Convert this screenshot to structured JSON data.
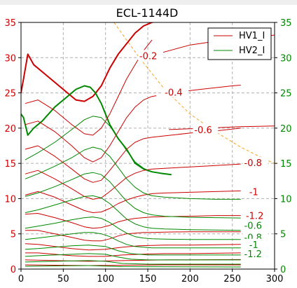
{
  "chart_data": {
    "type": "line",
    "title": "ECL-1144D",
    "xlabel": "",
    "ylabel": "",
    "xlim": [
      0,
      300
    ],
    "ylim": [
      0,
      35
    ],
    "ylim_right": [
      0,
      35
    ],
    "xticks": [
      0,
      50,
      100,
      150,
      200,
      250,
      300
    ],
    "yticks": [
      0,
      5,
      10,
      15,
      20,
      25,
      30,
      35
    ],
    "grid": true,
    "legend_position": "top-right",
    "colors": {
      "hv1": "#cc0000",
      "hv2": "#008800",
      "right_axis": "#008800",
      "dashed": "#f5a623"
    },
    "legend": [
      {
        "name": "HV1_I",
        "color": "#cc0000"
      },
      {
        "name": "HV2_I",
        "color": "#008800"
      }
    ],
    "series": [
      {
        "name": "HV1_I",
        "color": "#cc0000",
        "width": 2,
        "x": [
          0,
          3,
          8,
          15,
          25,
          40,
          55,
          65,
          75,
          85,
          95,
          105,
          115,
          125,
          135,
          145,
          155,
          160
        ],
        "y": [
          25,
          27,
          30.5,
          29,
          28,
          26.5,
          25,
          24,
          23.8,
          24.5,
          26,
          28.5,
          30.5,
          32,
          33.5,
          34.5,
          35,
          35.2
        ]
      },
      {
        "name": "HV2_I",
        "color": "#008800",
        "width": 2,
        "x": [
          0,
          3,
          8,
          15,
          25,
          40,
          55,
          65,
          75,
          82,
          88,
          95,
          105,
          115,
          125,
          135,
          145,
          155,
          165,
          178
        ],
        "y": [
          22,
          21.5,
          19,
          20,
          21,
          23,
          24.5,
          25.5,
          26,
          25.8,
          25,
          23.5,
          20.5,
          18.5,
          17,
          15,
          14.2,
          13.8,
          13.6,
          13.4
        ]
      },
      {
        "name": "",
        "color": "#cc0000",
        "width": 1,
        "x": [
          5,
          20,
          40,
          60,
          75,
          85,
          95,
          105,
          115,
          125,
          135,
          145,
          155
        ],
        "y": [
          23.5,
          24,
          22.5,
          20.5,
          19.2,
          19,
          20,
          22,
          24.5,
          27,
          29,
          31,
          32.5
        ]
      },
      {
        "name": "",
        "color": "#cc0000",
        "width": 1,
        "x": [
          5,
          20,
          40,
          60,
          75,
          85,
          95,
          105,
          115,
          125,
          135,
          145,
          155,
          160
        ],
        "y": [
          20.5,
          21,
          19.5,
          17.5,
          15.8,
          15.2,
          15.8,
          17.5,
          19.5,
          21.5,
          23,
          24,
          24.5,
          24.6
        ]
      },
      {
        "name": "",
        "color": "#cc0000",
        "width": 1,
        "x": [
          5,
          20,
          40,
          60,
          75,
          85,
          95,
          105,
          115,
          125,
          135,
          145,
          155,
          170,
          200,
          230,
          260
        ],
        "y": [
          17,
          17.5,
          16,
          14.2,
          12.8,
          12.3,
          12.6,
          14,
          15.5,
          17,
          18,
          18.5,
          18.7,
          18.9,
          19.3,
          19.6,
          20
        ]
      },
      {
        "name": "",
        "color": "#cc0000",
        "width": 1,
        "x": [
          5,
          20,
          40,
          60,
          75,
          85,
          95,
          105,
          115,
          125,
          135,
          145,
          155,
          170,
          200,
          230,
          260
        ],
        "y": [
          13.5,
          14,
          12.8,
          11.4,
          10.3,
          9.9,
          10.1,
          11,
          12,
          13,
          13.6,
          14,
          14.2,
          14.3,
          14.5,
          14.7,
          14.9
        ]
      },
      {
        "name": "",
        "color": "#cc0000",
        "width": 1,
        "x": [
          5,
          20,
          40,
          60,
          75,
          85,
          95,
          105,
          115,
          125,
          135,
          145,
          155,
          170,
          200,
          230,
          260
        ],
        "y": [
          10.5,
          11,
          10.2,
          9.1,
          8.3,
          8,
          8.1,
          8.6,
          9.3,
          9.8,
          10.2,
          10.5,
          10.7,
          10.8,
          10.9,
          11,
          11.1
        ]
      },
      {
        "name": "",
        "color": "#cc0000",
        "width": 1,
        "x": [
          5,
          20,
          40,
          60,
          75,
          85,
          95,
          105,
          115,
          125,
          135,
          145,
          155,
          170,
          200,
          230,
          260
        ],
        "y": [
          7.8,
          7.9,
          7.3,
          6.6,
          6,
          5.8,
          5.9,
          6.2,
          6.7,
          7,
          7.2,
          7.3,
          7.4,
          7.45,
          7.5,
          7.6,
          7.6
        ]
      },
      {
        "name": "",
        "color": "#cc0000",
        "width": 1,
        "x": [
          5,
          20,
          40,
          60,
          75,
          85,
          95,
          105,
          115,
          125,
          135,
          145,
          155,
          170,
          200,
          230,
          260
        ],
        "y": [
          5.5,
          5.5,
          5,
          4.5,
          4.1,
          4,
          4,
          4.3,
          4.7,
          5,
          5.1,
          5.2,
          5.2,
          5.25,
          5.3,
          5.3,
          5.3
        ]
      },
      {
        "name": "",
        "color": "#cc0000",
        "width": 1,
        "x": [
          5,
          20,
          40,
          60,
          80,
          100,
          120,
          140,
          170,
          200,
          230,
          260
        ],
        "y": [
          3.6,
          3.5,
          3.2,
          2.9,
          2.7,
          2.8,
          3.1,
          3.3,
          3.4,
          3.4,
          3.45,
          3.5
        ]
      },
      {
        "name": "",
        "color": "#cc0000",
        "width": 1,
        "x": [
          5,
          20,
          40,
          60,
          80,
          100,
          120,
          140,
          170,
          200,
          230,
          260
        ],
        "y": [
          2.3,
          2.3,
          2.1,
          1.9,
          1.8,
          1.8,
          2,
          2.1,
          2.2,
          2.2,
          2.25,
          2.3
        ]
      },
      {
        "name": "",
        "color": "#cc0000",
        "width": 1,
        "x": [
          5,
          40,
          80,
          120,
          170,
          260
        ],
        "y": [
          1.3,
          1.2,
          1.1,
          1.2,
          1.3,
          1.35
        ]
      },
      {
        "name": "",
        "color": "#cc0000",
        "width": 1,
        "x": [
          5,
          40,
          80,
          120,
          170,
          260
        ],
        "y": [
          0.6,
          0.55,
          0.5,
          0.55,
          0.6,
          0.6
        ]
      },
      {
        "name": "",
        "color": "#cc0000",
        "width": 1,
        "x": [
          160,
          200,
          240,
          280,
          300
        ],
        "y": [
          30.5,
          31.8,
          32.5,
          33,
          33.2
        ]
      },
      {
        "name": "",
        "color": "#cc0000",
        "width": 1,
        "x": [
          190,
          220,
          250,
          260
        ],
        "y": [
          25.2,
          25.6,
          26,
          26.1
        ]
      },
      {
        "name": "",
        "color": "#cc0000",
        "width": 1,
        "x": [
          175,
          220,
          260,
          300
        ],
        "y": [
          19.8,
          20,
          20.2,
          20.3
        ]
      },
      {
        "name": "",
        "color": "#008800",
        "width": 1,
        "x": [
          5,
          20,
          40,
          60,
          75,
          85,
          95,
          105,
          115,
          125,
          135,
          145,
          155,
          170
        ],
        "y": [
          15.5,
          16.5,
          18,
          19.8,
          21.2,
          21.7,
          21.5,
          20.3,
          18.6,
          16.8,
          15.2,
          14.3,
          13.8,
          13.5
        ]
      },
      {
        "name": "",
        "color": "#008800",
        "width": 1,
        "x": [
          5,
          20,
          40,
          60,
          75,
          85,
          95,
          105,
          115,
          125,
          135,
          145,
          155,
          170,
          200,
          230,
          260
        ],
        "y": [
          12.8,
          13.5,
          14.6,
          15.8,
          16.9,
          17.3,
          17,
          16,
          14.4,
          12.8,
          11.6,
          10.8,
          10.4,
          10.2,
          10,
          9.9,
          9.9
        ]
      },
      {
        "name": "",
        "color": "#008800",
        "width": 1,
        "x": [
          5,
          20,
          40,
          60,
          75,
          85,
          95,
          105,
          115,
          125,
          135,
          145,
          155,
          170,
          200,
          230,
          260
        ],
        "y": [
          10.3,
          10.8,
          11.7,
          12.7,
          13.5,
          13.7,
          13.4,
          12.4,
          11,
          9.6,
          8.6,
          8,
          7.7,
          7.5,
          7.35,
          7.3,
          7.25
        ]
      },
      {
        "name": "",
        "color": "#008800",
        "width": 1,
        "x": [
          5,
          20,
          40,
          60,
          75,
          85,
          95,
          105,
          115,
          125,
          135,
          145,
          155,
          170,
          200,
          230,
          260
        ],
        "y": [
          8,
          8.4,
          9.1,
          9.8,
          10.3,
          10.4,
          10.1,
          9.3,
          8.2,
          7.1,
          6.4,
          6,
          5.8,
          5.7,
          5.6,
          5.55,
          5.5
        ]
      },
      {
        "name": "",
        "color": "#008800",
        "width": 1,
        "x": [
          5,
          20,
          40,
          60,
          75,
          85,
          95,
          105,
          115,
          125,
          135,
          145,
          155,
          170,
          200,
          230,
          260
        ],
        "y": [
          5.8,
          6.1,
          6.5,
          7,
          7.3,
          7.4,
          7.2,
          6.6,
          5.8,
          5.1,
          4.6,
          4.4,
          4.3,
          4.25,
          4.2,
          4.2,
          4.2
        ]
      },
      {
        "name": "",
        "color": "#008800",
        "width": 1,
        "x": [
          5,
          20,
          40,
          60,
          75,
          85,
          95,
          105,
          115,
          125,
          135,
          145,
          155,
          170,
          200,
          230,
          260
        ],
        "y": [
          4.2,
          4.4,
          4.7,
          5,
          5.2,
          5.2,
          5,
          4.6,
          4,
          3.5,
          3.2,
          3.1,
          3,
          3,
          3,
          3,
          3
        ]
      },
      {
        "name": "",
        "color": "#008800",
        "width": 1,
        "x": [
          5,
          20,
          40,
          60,
          80,
          100,
          115,
          130,
          150,
          200,
          260
        ],
        "y": [
          2.8,
          2.9,
          3.1,
          3.3,
          3.4,
          3.2,
          2.6,
          2.2,
          2,
          2,
          2
        ]
      },
      {
        "name": "",
        "color": "#008800",
        "width": 1,
        "x": [
          5,
          20,
          40,
          60,
          80,
          100,
          115,
          130,
          150,
          200,
          260
        ],
        "y": [
          1.8,
          1.9,
          2,
          2.1,
          2.2,
          2.1,
          1.7,
          1.4,
          1.3,
          1.3,
          1.3
        ]
      },
      {
        "name": "",
        "color": "#008800",
        "width": 1,
        "x": [
          5,
          40,
          80,
          100,
          120,
          150,
          260
        ],
        "y": [
          1,
          1.1,
          1.2,
          1.1,
          0.8,
          0.7,
          0.7
        ]
      },
      {
        "name": "",
        "color": "#008800",
        "width": 1,
        "x": [
          5,
          40,
          80,
          120,
          260
        ],
        "y": [
          0.4,
          0.45,
          0.5,
          0.35,
          0.3
        ]
      }
    ],
    "dashed_line": {
      "color": "#f5a623",
      "x": [
        110,
        140,
        170,
        200,
        230,
        260,
        290,
        300
      ],
      "y": [
        35,
        30,
        25.5,
        22,
        19.5,
        17.3,
        15.5,
        15
      ]
    },
    "annotations": [
      {
        "text": "-0.2",
        "x": 140,
        "y": 30.2,
        "color": "#cc0000"
      },
      {
        "text": "-0.4",
        "x": 170,
        "y": 25,
        "color": "#cc0000"
      },
      {
        "text": "-0.6",
        "x": 205,
        "y": 19.7,
        "color": "#cc0000"
      },
      {
        "text": "-0.8",
        "x": 264,
        "y": 15,
        "color": "#cc0000"
      },
      {
        "text": "-1",
        "x": 270,
        "y": 10.9,
        "color": "#cc0000"
      },
      {
        "text": "-1.2",
        "x": 266,
        "y": 7.5,
        "color": "#cc0000"
      },
      {
        "text": "-0.6",
        "x": 264,
        "y": 6.1,
        "color": "#008800"
      },
      {
        "text": "-0.8",
        "x": 264,
        "y": 4.4,
        "color": "#008800"
      },
      {
        "text": "-1",
        "x": 270,
        "y": 3.4,
        "color": "#008800"
      },
      {
        "text": "-1.2",
        "x": 264,
        "y": 2.1,
        "color": "#008800"
      }
    ]
  }
}
